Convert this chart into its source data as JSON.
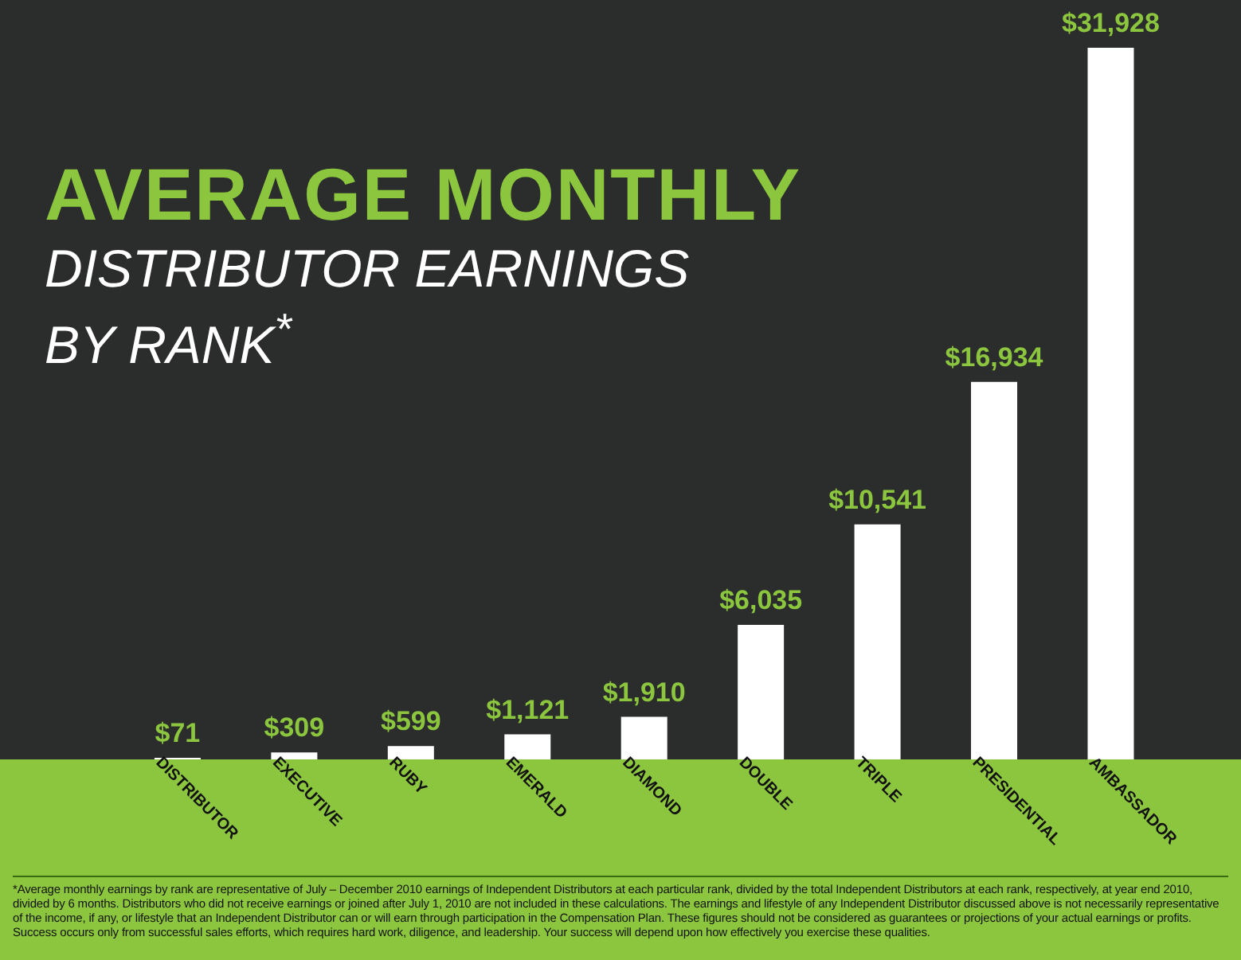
{
  "chart_data": {
    "type": "bar",
    "title": "AVERAGE MONTHLY",
    "subtitle": "DISTRIBUTOR EARNINGS BY RANK$^{*}$",
    "categories": [
      "DISTRIBUTOR",
      "EXECUTIVE",
      "RUBY",
      "EMERALD",
      "DIAMOND",
      "DOUBLE",
      "TRIPLE",
      "PRESIDENTIAL",
      "AMBASSADOR"
    ],
    "values": [
      71,
      309,
      599,
      1121,
      1910,
      6035,
      10541,
      16934,
      31928
    ],
    "value_labels": [
      "$71",
      "$309",
      "$599",
      "$1,121",
      "$1,910",
      "$6,035",
      "$10,541",
      "$16,934",
      "$31,928"
    ],
    "color": "#ffffff",
    "annotations": [
      "*Average monthly earnings by rank are representative of July – December 2010 earnings of Independent Distributors at each particular rank, divided by the total Independent Distributors at each rank, respectively, at year end 2010, divided by 6 months. Distributors who did not receive earnings or joined after July 1, 2010 are not included in these calculations. The earnings and lifestyle of any Independent Distributor discussed above is not necessarily representative of the income, if any, or lifestyle that an Independent Distributor can or will earn through participation in the Compensation Plan. These figures should not be considered as guarantees or projections of your actual earnings or profits. Success occurs only from successful sales efforts, which requires hard work, diligence, and leadership. Your success will depend upon how effectively you exercise these qualities."
    ]
  }
}
